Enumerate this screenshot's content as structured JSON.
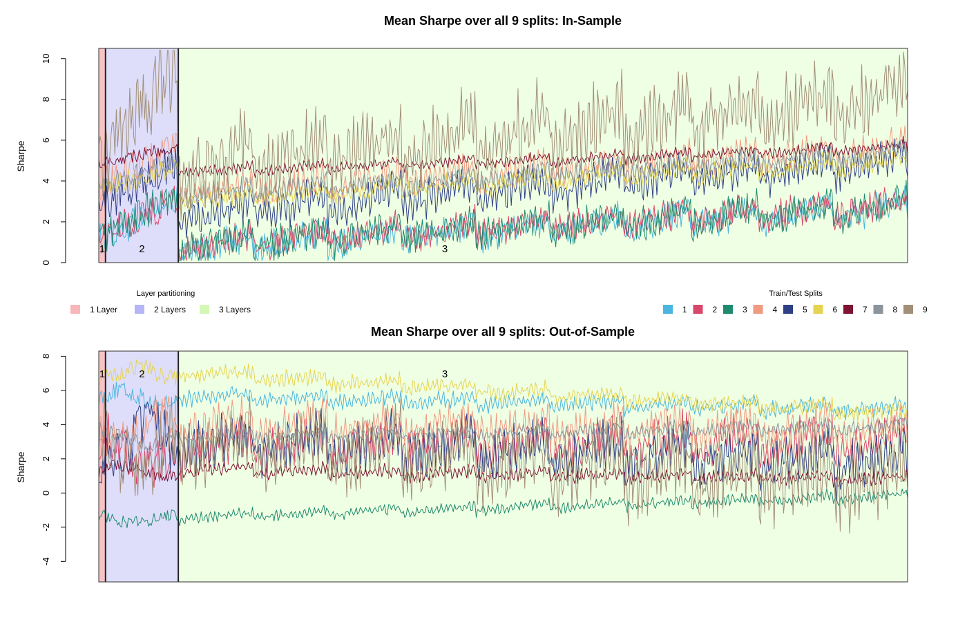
{
  "layer_colors": [
    "#f9c3c6",
    "#dedefa",
    "#efffe3"
  ],
  "layer_legend_colors": [
    "#f7b6b9",
    "#b5b5f7",
    "#d4f7b5"
  ],
  "series_colors": [
    "#4ab6e0",
    "#d9476b",
    "#1e8a6e",
    "#f09a82",
    "#2f3f86",
    "#e6d34f",
    "#7e1333",
    "#8b949b",
    "#a28f78"
  ],
  "layer_legend": {
    "title": "Layer partitioning",
    "items": [
      "1 Layer",
      "2 Layers",
      "3 Layers"
    ]
  },
  "splits_legend": {
    "title": "Train/Test Splits",
    "items": [
      "1",
      "2",
      "3",
      "4",
      "5",
      "6",
      "7",
      "8",
      "9"
    ]
  },
  "chart_data": [
    {
      "type": "line",
      "title": "Mean Sharpe over all 9 splits: In-Sample",
      "ylabel": "Sharpe",
      "xlabel": "",
      "ylim": [
        0,
        10.5
      ],
      "yticks": [
        "0",
        "2",
        "4",
        "6",
        "8",
        "10"
      ],
      "ytick_values": [
        0,
        2,
        4,
        6,
        8,
        10
      ],
      "x_range": [
        0,
        1200
      ],
      "layer_bands": [
        {
          "label": "1",
          "x_start": 0,
          "x_end": 10
        },
        {
          "label": "2",
          "x_start": 10,
          "x_end": 118
        },
        {
          "label": "3",
          "x_start": 118,
          "x_end": 1200
        }
      ],
      "series": [
        {
          "name": "1",
          "base": 0.6,
          "end": 2.5,
          "amp": 0.9
        },
        {
          "name": "2",
          "base": 0.7,
          "end": 2.7,
          "amp": 0.9
        },
        {
          "name": "3",
          "base": 0.7,
          "end": 2.6,
          "amp": 1.0
        },
        {
          "name": "4",
          "base": 3.3,
          "end": 5.5,
          "amp": 0.9
        },
        {
          "name": "5",
          "base": 2.2,
          "end": 4.8,
          "amp": 1.1
        },
        {
          "name": "6",
          "base": 3.0,
          "end": 4.9,
          "amp": 0.6
        },
        {
          "name": "7",
          "base": 4.4,
          "end": 5.6,
          "amp": 0.35
        },
        {
          "name": "8",
          "base": 3.2,
          "end": 5.3,
          "amp": 0.6
        },
        {
          "name": "9",
          "base": 4.3,
          "end": 7.8,
          "amp": 2.2
        }
      ]
    },
    {
      "type": "line",
      "title": "Mean Sharpe over all 9 splits: Out-of-Sample",
      "ylabel": "Sharpe",
      "xlabel": "",
      "ylim": [
        -5.2,
        8.3
      ],
      "yticks": [
        "-4",
        "-2",
        "0",
        "2",
        "4",
        "6",
        "8"
      ],
      "ytick_values": [
        -4,
        -2,
        0,
        2,
        4,
        6,
        8
      ],
      "x_range": [
        0,
        1200
      ],
      "layer_bands": [
        {
          "label": "1",
          "x_start": 0,
          "x_end": 10
        },
        {
          "label": "2",
          "x_start": 10,
          "x_end": 118
        },
        {
          "label": "3",
          "x_start": 118,
          "x_end": 1200
        }
      ],
      "series": [
        {
          "name": "1",
          "base": 5.6,
          "end": 4.8,
          "amp": 0.6
        },
        {
          "name": "2",
          "base": 2.5,
          "end": 2.8,
          "amp": 1.6
        },
        {
          "name": "3",
          "base": -1.5,
          "end": -0.2,
          "amp": 0.4
        },
        {
          "name": "4",
          "base": 3.8,
          "end": 3.4,
          "amp": 1.4
        },
        {
          "name": "5",
          "base": 2.8,
          "end": 1.5,
          "amp": 1.8
        },
        {
          "name": "6",
          "base": 7.0,
          "end": 4.5,
          "amp": 0.6
        },
        {
          "name": "7",
          "base": 1.3,
          "end": 0.7,
          "amp": 0.5
        },
        {
          "name": "8",
          "base": 3.2,
          "end": 3.8,
          "amp": 0.5
        },
        {
          "name": "9",
          "base": 2.5,
          "end": 0.0,
          "amp": 2.6
        }
      ]
    }
  ]
}
